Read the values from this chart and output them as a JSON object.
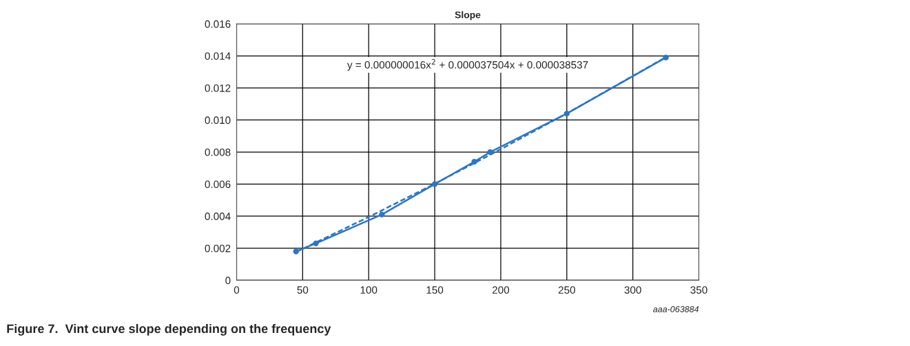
{
  "chart_data": {
    "type": "line",
    "title": "Slope",
    "xlim": [
      0,
      350
    ],
    "xticks": [
      0,
      50,
      100,
      150,
      200,
      250,
      300,
      350
    ],
    "ylim": [
      0,
      0.016
    ],
    "yticks": [
      {
        "value": 0,
        "label": "0"
      },
      {
        "value": 0.002,
        "label": "0.002"
      },
      {
        "value": 0.004,
        "label": "0.004"
      },
      {
        "value": 0.006,
        "label": "0.006"
      },
      {
        "value": 0.008,
        "label": "0.008"
      },
      {
        "value": 0.01,
        "label": "0.010"
      },
      {
        "value": 0.012,
        "label": "0.012"
      },
      {
        "value": 0.014,
        "label": "0.014"
      },
      {
        "value": 0.016,
        "label": "0.016"
      }
    ],
    "grid": true,
    "legend": false,
    "series": [
      {
        "color": "#2e75c2",
        "marker": "circle",
        "line_style": "solid",
        "x": [
          45,
          60,
          110,
          150,
          180,
          192,
          250,
          325
        ],
        "values": [
          0.0018,
          0.0023,
          0.0041,
          0.006,
          0.0074,
          0.008,
          0.0104,
          0.0139
        ]
      },
      {
        "color": "#2e75c2",
        "marker": "none",
        "line_style": "dashed",
        "x": [
          45,
          100,
          150,
          200,
          250,
          325
        ],
        "values": [
          0.00176,
          0.00395,
          0.00602,
          0.00818,
          0.01041,
          0.01392
        ]
      }
    ],
    "annotations": [
      "y = 0.000000016x$^{2}$ + 0.000037504x + 0.000038537",
      "aaa-063884",
      "Figure 7.  Vint curve slope depending on the frequency"
    ]
  }
}
